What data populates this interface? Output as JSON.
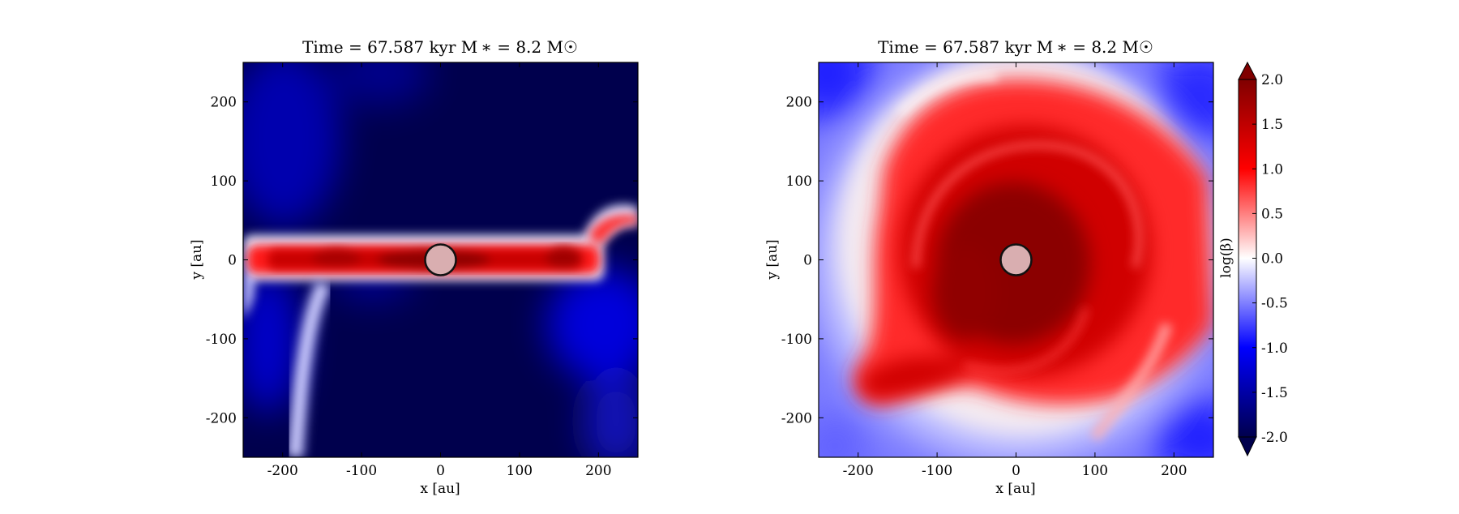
{
  "chart_data": [
    {
      "type": "heatmap",
      "panel": "left",
      "title": "Time = 67.587 kyr    M$_*$ = 8.2 M$_\\odot$",
      "title_display": "Time = 67.587 kyr    M ∗ = 8.2 M☉",
      "xlabel": "x [au]",
      "ylabel": "y [au]",
      "xlim": [
        -250,
        250
      ],
      "ylim": [
        -250,
        250
      ],
      "xticks": [
        -200,
        -100,
        0,
        100,
        200
      ],
      "yticks": [
        -200,
        -100,
        0,
        100,
        200
      ],
      "field": "log(beta)",
      "description_features": "edge-on disk: high-beta (red) horizontal slab at y≈0 from x≈-250 to 200, low-beta (dark blue) elsewhere, a white filament descending from (-170,-40) to (-180,-250)",
      "star": {
        "x": 0,
        "y": 0,
        "radius_au": 20
      }
    },
    {
      "type": "heatmap",
      "panel": "right",
      "title": "Time = 67.587 kyr    M$_*$ = 8.2 M$_\\odot$",
      "title_display": "Time = 67.587 kyr    M ∗ = 8.2 M☉",
      "xlabel": "x [au]",
      "ylabel": "y [au]",
      "xlim": [
        -250,
        250
      ],
      "ylim": [
        -250,
        250
      ],
      "xticks": [
        -200,
        -100,
        0,
        100,
        200
      ],
      "yticks": [
        -200,
        -100,
        0,
        100,
        200
      ],
      "field": "log(beta)",
      "description_features": "face-on spiral disk: high-beta (dark red) core with spiral arms, tail to lower-left, surrounded by pale blue/white and blue corners",
      "star": {
        "x": 0,
        "y": 0,
        "radius_au": 20
      }
    }
  ],
  "colorbar": {
    "label": "log(β)",
    "min": -2.0,
    "max": 2.0,
    "extend": "both",
    "cmap": "seismic",
    "ticks": [
      "-2.0",
      "-1.5",
      "-1.0",
      "-0.5",
      "0.0",
      "0.5",
      "1.0",
      "1.5",
      "2.0"
    ]
  },
  "colors": {
    "lowest": "#00004d",
    "blue": "#0000ff",
    "white": "#ffffff",
    "red": "#ff0000",
    "highest": "#800000",
    "star_fill": "#d9aeb0"
  },
  "labels": {
    "left_title": "Time = 67.587 kyr    M ∗ = 8.2 M☉",
    "right_title": "Time = 67.587 kyr    M ∗ = 8.2 M☉",
    "xlabel": "x [au]",
    "ylabel": "y [au]",
    "cbar_label": "log(β)"
  }
}
